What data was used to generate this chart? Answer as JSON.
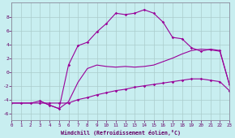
{
  "background_color": "#c8eef0",
  "grid_color": "#aacccc",
  "line_color": "#990099",
  "xlim": [
    0,
    23
  ],
  "ylim": [
    -7,
    10
  ],
  "xticks": [
    0,
    1,
    2,
    3,
    4,
    5,
    6,
    7,
    8,
    9,
    10,
    11,
    12,
    13,
    14,
    15,
    16,
    17,
    18,
    19,
    20,
    21,
    22,
    23
  ],
  "yticks": [
    -6,
    -4,
    -2,
    0,
    2,
    4,
    6,
    8
  ],
  "xlabel": "Windchill (Refroidissement éolien,°C)",
  "lineA_x": [
    0,
    1,
    2,
    3,
    4,
    5,
    6,
    7,
    8,
    9,
    10,
    11,
    12,
    13,
    14,
    15,
    16,
    17,
    18,
    19,
    20,
    21,
    22,
    23
  ],
  "lineA_y": [
    -4.5,
    -4.5,
    -4.5,
    -4.5,
    -4.5,
    -4.5,
    -4.5,
    -4.0,
    -3.7,
    -3.3,
    -3.0,
    -2.7,
    -2.5,
    -2.2,
    -2.0,
    -1.8,
    -1.6,
    -1.4,
    -1.2,
    -1.0,
    -1.0,
    -1.2,
    -1.4,
    -2.7
  ],
  "lineB_x": [
    0,
    1,
    2,
    3,
    4,
    5,
    6,
    7,
    8,
    9,
    10,
    11,
    12,
    13,
    14,
    15,
    16,
    17,
    18,
    19,
    20,
    21,
    22,
    23
  ],
  "lineB_y": [
    -4.5,
    -4.5,
    -4.5,
    -4.2,
    -4.8,
    -5.3,
    -4.3,
    -1.5,
    0.5,
    1.0,
    0.8,
    0.7,
    0.8,
    0.7,
    0.8,
    1.0,
    1.5,
    2.0,
    2.6,
    3.1,
    3.3,
    3.2,
    3.0,
    -1.8
  ],
  "lineC_x": [
    3,
    4,
    5,
    6,
    7,
    8,
    9,
    10,
    11,
    12,
    13,
    14,
    15,
    16,
    17,
    18,
    19,
    20,
    21,
    22,
    23
  ],
  "lineC_y": [
    -4.2,
    -4.8,
    -5.3,
    1.0,
    3.8,
    4.3,
    5.8,
    7.0,
    8.5,
    8.3,
    8.5,
    9.0,
    8.5,
    7.2,
    5.0,
    4.8,
    3.5,
    3.0,
    3.3,
    3.1,
    -1.8
  ]
}
